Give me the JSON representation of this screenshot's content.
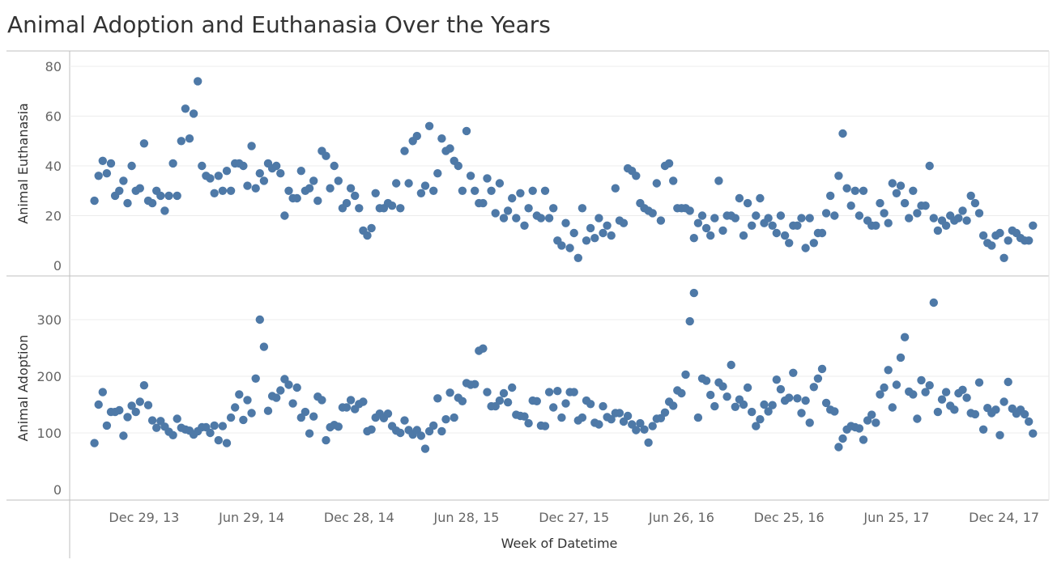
{
  "title": "Animal Adoption and Euthanasia Over the Years",
  "colors": {
    "marker": "#4e79a7",
    "gridline": "#ececec",
    "axisline": "#bfbfbf"
  },
  "chart_data": {
    "type": "scatter",
    "title": "Animal Adoption and Euthanasia Over the Years",
    "xlabel": "Week of Datetime",
    "x_tick_labels": [
      "Dec 29, 13",
      "Jun 29, 14",
      "Dec 28, 14",
      "Jun 28, 15",
      "Dec 27, 15",
      "Jun 26, 16",
      "Dec 25, 16",
      "Jun 25, 17",
      "Dec 24, 17"
    ],
    "x_start": "2013-10-06",
    "week_step": 1,
    "x_range": [
      "2013-08-25",
      "2018-03-10"
    ],
    "panels": [
      {
        "ylabel": "Animal Euthanasia",
        "ylim": [
          0,
          80
        ],
        "yticks": [
          0,
          20,
          40,
          60,
          80
        ],
        "values": [
          26,
          36,
          42,
          37,
          41,
          28,
          30,
          34,
          25,
          40,
          30,
          31,
          49,
          26,
          25,
          30,
          28,
          22,
          28,
          41,
          28,
          50,
          63,
          51,
          61,
          74,
          40,
          36,
          35,
          29,
          36,
          30,
          38,
          30,
          41,
          41,
          40,
          32,
          48,
          31,
          37,
          34,
          41,
          39,
          40,
          37,
          20,
          30,
          27,
          27,
          38,
          30,
          31,
          34,
          26,
          46,
          44,
          31,
          40,
          34,
          23,
          25,
          31,
          28,
          23,
          14,
          12,
          15,
          29,
          23,
          23,
          25,
          24,
          33,
          23,
          46,
          33,
          50,
          52,
          29,
          32,
          56,
          30,
          37,
          51,
          46,
          47,
          42,
          40,
          30,
          54,
          36,
          30,
          25,
          25,
          35,
          30,
          21,
          33,
          19,
          22,
          27,
          19,
          29,
          16,
          23,
          30,
          20,
          19,
          30,
          19,
          23,
          10,
          8,
          17,
          7,
          13,
          3,
          23,
          10,
          15,
          11,
          19,
          13,
          16,
          12,
          31,
          18,
          17,
          39,
          38,
          36,
          25,
          23,
          22,
          21,
          33,
          18,
          40,
          41,
          34,
          23,
          23,
          23,
          22,
          11,
          17,
          20,
          15,
          12,
          19,
          34,
          14,
          20,
          20,
          19,
          27,
          12,
          25,
          16,
          20,
          27,
          17,
          19,
          16,
          13,
          20,
          12,
          9,
          16,
          16,
          19,
          7,
          19,
          9,
          13,
          13,
          21,
          28,
          20,
          36,
          53,
          31,
          24,
          30,
          20,
          30,
          18,
          16,
          16,
          25,
          21,
          17,
          33,
          29,
          32,
          25,
          19,
          30,
          21,
          24,
          24,
          40,
          19,
          14,
          18,
          16,
          20,
          18,
          19,
          22,
          18,
          28,
          25,
          21,
          12,
          9,
          8,
          12,
          13,
          3,
          10,
          14,
          13,
          11,
          10,
          10,
          16
        ]
      },
      {
        "ylabel": "Animal Adoption",
        "ylim": [
          0,
          350
        ],
        "yticks": [
          0,
          100,
          200,
          300
        ],
        "values": [
          82,
          150,
          172,
          113,
          137,
          137,
          140,
          95,
          128,
          148,
          137,
          155,
          184,
          149,
          122,
          109,
          121,
          111,
          102,
          96,
          125,
          109,
          106,
          104,
          97,
          103,
          110,
          110,
          100,
          113,
          87,
          112,
          82,
          127,
          145,
          168,
          123,
          158,
          135,
          196,
          300,
          252,
          139,
          165,
          162,
          175,
          195,
          185,
          152,
          180,
          127,
          137,
          99,
          129,
          164,
          158,
          87,
          110,
          114,
          111,
          145,
          145,
          158,
          142,
          151,
          155,
          103,
          106,
          127,
          134,
          126,
          134,
          112,
          104,
          100,
          122,
          105,
          97,
          105,
          95,
          72,
          103,
          113,
          161,
          103,
          124,
          171,
          127,
          162,
          156,
          188,
          185,
          186,
          245,
          249,
          172,
          147,
          147,
          157,
          170,
          154,
          180,
          132,
          130,
          129,
          117,
          157,
          156,
          113,
          112,
          172,
          145,
          174,
          127,
          152,
          172,
          172,
          122,
          127,
          157,
          151,
          118,
          115,
          147,
          128,
          124,
          135,
          135,
          120,
          130,
          115,
          105,
          117,
          106,
          83,
          112,
          125,
          126,
          136,
          155,
          148,
          175,
          170,
          203,
          297,
          347,
          127,
          196,
          192,
          167,
          147,
          189,
          182,
          164,
          220,
          146,
          159,
          150,
          180,
          137,
          112,
          124,
          150,
          138,
          149,
          194,
          177,
          157,
          162,
          206,
          161,
          135,
          157,
          118,
          181,
          196,
          213,
          153,
          141,
          138,
          75,
          90,
          106,
          112,
          110,
          108,
          88,
          122,
          132,
          118,
          168,
          180,
          211,
          145,
          185,
          233,
          269,
          173,
          168,
          125,
          193,
          172,
          184,
          330,
          137,
          159,
          172,
          148,
          141,
          170,
          176,
          162,
          135,
          133,
          189,
          106,
          144,
          135,
          141,
          96,
          155,
          190,
          143,
          134,
          141,
          133,
          120,
          99
        ]
      }
    ]
  }
}
